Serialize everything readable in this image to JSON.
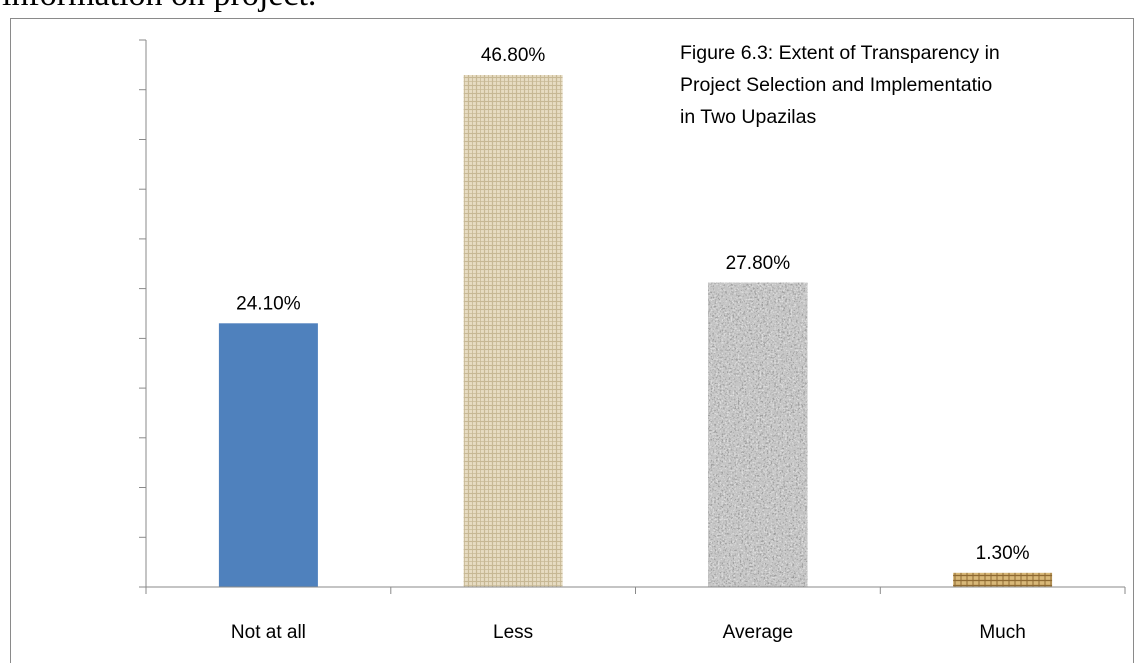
{
  "document": {
    "lead_text": "information on project."
  },
  "chart_data": {
    "type": "bar",
    "title_lines": [
      "Figure 6.3: Extent of Transparency in",
      "Project Selection and Implementatio",
      "in Two Upazilas"
    ],
    "categories": [
      "Not at all",
      "Less",
      "Average",
      "Much"
    ],
    "values": [
      24.1,
      46.8,
      27.8,
      1.3
    ],
    "data_labels": [
      "24.10%",
      "46.80%",
      "27.80%",
      "1.30%"
    ],
    "unit": "%",
    "ylim": [
      0,
      50
    ],
    "y_tick_count": 12,
    "y_tick_labels_shown": false,
    "grid": false,
    "legend": "none",
    "bar_fills": [
      "solid-blue",
      "beige-linen-texture",
      "grey-granite-texture",
      "tan-burlap-texture"
    ],
    "colors": {
      "solid_blue": "#4f81bd",
      "linen_base": "#e7dcc2",
      "linen_thread": "#c7b894",
      "granite_base": "#9e9e9e",
      "granite_dark": "#3c3c3c",
      "granite_light": "#e2e2e2",
      "burlap_base": "#d8b878",
      "burlap_thread": "#8e6a32",
      "axis": "#8a8a8a"
    }
  }
}
